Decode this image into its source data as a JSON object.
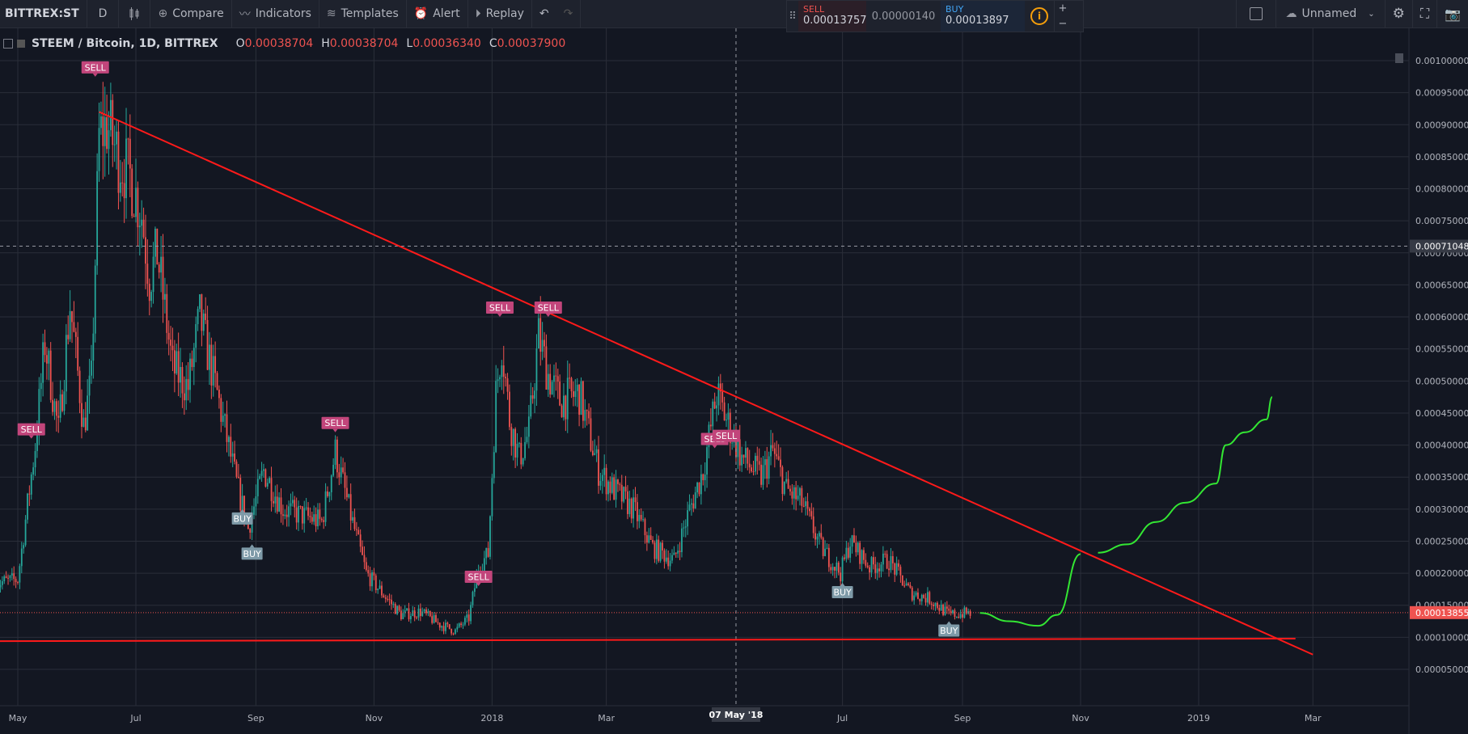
{
  "toolbar": {
    "symbol": "BITTREX:ST",
    "interval": "D",
    "compare": "Compare",
    "indicators": "Indicators",
    "templates": "Templates",
    "alert": "Alert",
    "replay": "Replay",
    "layout_name": "Unnamed"
  },
  "trade": {
    "sell_label": "SELL",
    "sell_price": "0.00013757",
    "spread": "0.00000140",
    "buy_label": "BUY",
    "buy_price": "0.00013897",
    "plus": "+",
    "minus": "−"
  },
  "legend": {
    "title": "STEEM / Bitcoin, 1D, BITTREX",
    "o_label": "O",
    "o": "0.00038704",
    "h_label": "H",
    "h": "0.00038704",
    "l_label": "L",
    "l": "0.00036340",
    "c_label": "C",
    "c": "0.00037900"
  },
  "colors": {
    "background": "#131722",
    "grid": "#2a2e39",
    "up": "#26a69a",
    "down": "#ef5350",
    "trendline": "#ff1a1a",
    "projection": "#33e633",
    "sell_marker": "#c2457b",
    "buy_marker": "#7e9aa8"
  },
  "chart_data": {
    "type": "candlestick",
    "x_tick_labels": [
      "May",
      "Jul",
      "Sep",
      "Nov",
      "2018",
      "Mar",
      "07 May '18",
      "Jul",
      "Sep",
      "Nov",
      "2019",
      "Mar"
    ],
    "x_tick_dates": [
      "2017-05-01",
      "2017-07-01",
      "2017-09-01",
      "2017-11-01",
      "2018-01-01",
      "2018-03-01",
      "2018-05-07",
      "2018-07-01",
      "2018-09-01",
      "2018-11-01",
      "2019-01-01",
      "2019-03-01"
    ],
    "y_tick_labels": [
      "0.00005000",
      "0.00010000",
      "0.00015000",
      "0.00020000",
      "0.00025000",
      "0.00030000",
      "0.00035000",
      "0.00040000",
      "0.00045000",
      "0.00050000",
      "0.00055000",
      "0.00060000",
      "0.00065000",
      "0.00070000",
      "0.00075000",
      "0.00080000",
      "0.00085000",
      "0.00090000",
      "0.00095000",
      "0.00100000"
    ],
    "ylim": [
      3.3e-05,
      0.001047
    ],
    "crosshair": {
      "date": "2018-05-07",
      "price": 0.00071048,
      "price_label": "0.00071048",
      "date_label": "07 May '18"
    },
    "last_price": {
      "value": 0.00013855,
      "label": "0.00013855"
    },
    "close_path": [
      [
        "2017-04-20",
        0.000185
      ],
      [
        "2017-05-01",
        0.00019
      ],
      [
        "2017-05-10",
        0.0004
      ],
      [
        "2017-05-15",
        0.00056
      ],
      [
        "2017-05-22",
        0.00042
      ],
      [
        "2017-05-28",
        0.00062
      ],
      [
        "2017-06-04",
        0.00043
      ],
      [
        "2017-06-08",
        0.0005
      ],
      [
        "2017-06-12",
        0.00088
      ],
      [
        "2017-06-16",
        0.0009
      ],
      [
        "2017-06-22",
        0.00085
      ],
      [
        "2017-06-28",
        0.00082
      ],
      [
        "2017-07-04",
        0.00076
      ],
      [
        "2017-07-08",
        0.00066
      ],
      [
        "2017-07-12",
        0.0007
      ],
      [
        "2017-07-20",
        0.00052
      ],
      [
        "2017-07-28",
        0.00049
      ],
      [
        "2017-08-03",
        0.0006
      ],
      [
        "2017-08-12",
        0.00048
      ],
      [
        "2017-08-22",
        0.00034
      ],
      [
        "2017-08-28",
        0.00027
      ],
      [
        "2017-09-05",
        0.00036
      ],
      [
        "2017-09-15",
        0.0003
      ],
      [
        "2017-09-25",
        0.00029
      ],
      [
        "2017-10-05",
        0.00028
      ],
      [
        "2017-10-12",
        0.00039
      ],
      [
        "2017-10-20",
        0.00029
      ],
      [
        "2017-10-28",
        0.0002
      ],
      [
        "2017-11-05",
        0.00017
      ],
      [
        "2017-11-15",
        0.000135
      ],
      [
        "2017-11-25",
        0.00014
      ],
      [
        "2017-12-05",
        0.00012
      ],
      [
        "2017-12-13",
        0.00011
      ],
      [
        "2017-12-20",
        0.00013
      ],
      [
        "2017-12-25",
        0.00021
      ],
      [
        "2017-12-30",
        0.00023
      ],
      [
        "2018-01-03",
        0.00048
      ],
      [
        "2018-01-06",
        0.00056
      ],
      [
        "2018-01-10",
        0.00044
      ],
      [
        "2018-01-15",
        0.00038
      ],
      [
        "2018-01-20",
        0.00042
      ],
      [
        "2018-01-25",
        0.00057
      ],
      [
        "2018-01-30",
        0.00051
      ],
      [
        "2018-02-05",
        0.00047
      ],
      [
        "2018-02-15",
        0.00048
      ],
      [
        "2018-02-25",
        0.00036
      ],
      [
        "2018-03-05",
        0.00033
      ],
      [
        "2018-03-15",
        0.0003
      ],
      [
        "2018-03-25",
        0.00024
      ],
      [
        "2018-04-05",
        0.00022
      ],
      [
        "2018-04-12",
        0.00029
      ],
      [
        "2018-04-20",
        0.00036
      ],
      [
        "2018-04-27",
        0.00048
      ],
      [
        "2018-05-02",
        0.00044
      ],
      [
        "2018-05-10",
        0.00038
      ],
      [
        "2018-05-20",
        0.00035
      ],
      [
        "2018-05-26",
        0.00039
      ],
      [
        "2018-06-02",
        0.00033
      ],
      [
        "2018-06-10",
        0.00031
      ],
      [
        "2018-06-20",
        0.00024
      ],
      [
        "2018-06-30",
        0.0002
      ],
      [
        "2018-07-05",
        0.00025
      ],
      [
        "2018-07-15",
        0.00021
      ],
      [
        "2018-07-25",
        0.00022
      ],
      [
        "2018-08-05",
        0.00017
      ],
      [
        "2018-08-15",
        0.00016
      ],
      [
        "2018-08-25",
        0.000135
      ],
      [
        "2018-09-05",
        0.000138
      ]
    ],
    "trendlines": [
      {
        "from": [
          "2017-06-12",
          0.00092
        ],
        "to": [
          "2019-03-01",
          7.3e-05
        ]
      },
      {
        "from": [
          "2017-04-20",
          9.4e-05
        ],
        "to": [
          "2019-02-20",
          9.8e-05
        ]
      }
    ],
    "projection": [
      [
        "2018-09-10",
        0.000138
      ],
      [
        "2018-09-25",
        0.000125
      ],
      [
        "2018-10-10",
        0.000118
      ],
      [
        "2018-10-20",
        0.000135
      ],
      [
        "2018-11-01",
        0.00023
      ],
      [
        "2018-11-10",
        0.000232
      ],
      [
        "2018-11-25",
        0.000245
      ],
      [
        "2018-12-10",
        0.00028
      ],
      [
        "2018-12-25",
        0.00031
      ],
      [
        "2019-01-10",
        0.00034
      ],
      [
        "2019-01-15",
        0.0004
      ],
      [
        "2019-01-25",
        0.00042
      ],
      [
        "2019-02-05",
        0.00044
      ],
      [
        "2019-02-08",
        0.000475
      ]
    ],
    "signals": [
      {
        "label": "SELL",
        "side": "sell",
        "date": "2017-06-10",
        "price": 0.000975
      },
      {
        "label": "SELL",
        "side": "sell",
        "date": "2017-05-08",
        "price": 0.00041
      },
      {
        "label": "BUY",
        "side": "buy",
        "date": "2017-08-25",
        "price": 0.0003
      },
      {
        "label": "BUY",
        "side": "buy",
        "date": "2017-08-30",
        "price": 0.000245
      },
      {
        "label": "SELL",
        "side": "sell",
        "date": "2017-10-12",
        "price": 0.00042
      },
      {
        "label": "SELL",
        "side": "sell",
        "date": "2017-12-25",
        "price": 0.00018
      },
      {
        "label": "SELL",
        "side": "sell",
        "date": "2018-01-05",
        "price": 0.0006
      },
      {
        "label": "SELL",
        "side": "sell",
        "date": "2018-01-30",
        "price": 0.0006
      },
      {
        "label": "SELL",
        "side": "sell",
        "date": "2018-04-26",
        "price": 0.000395
      },
      {
        "label": "SELL",
        "side": "sell",
        "date": "2018-05-02",
        "price": 0.0004
      },
      {
        "label": "BUY",
        "side": "buy",
        "date": "2018-07-01",
        "price": 0.000185
      },
      {
        "label": "BUY",
        "side": "buy",
        "date": "2018-08-25",
        "price": 0.000125
      }
    ]
  }
}
